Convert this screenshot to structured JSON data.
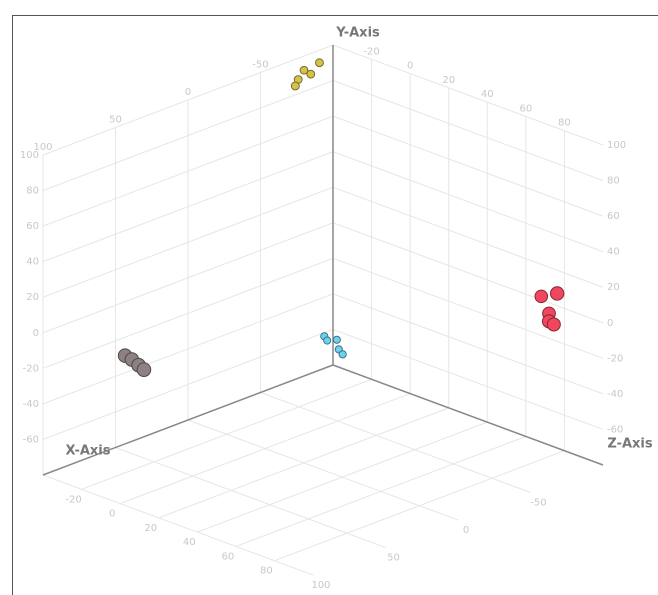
{
  "chart_data": {
    "type": "scatter3d",
    "xlabel": "X-Axis",
    "ylabel": "Y-Axis",
    "zlabel": "Z-Axis",
    "xlim": [
      -40,
      100
    ],
    "xticks": [
      -20,
      0,
      20,
      40,
      60,
      80
    ],
    "ylim": [
      -80,
      100
    ],
    "yticks": [
      -60,
      -40,
      -20,
      0,
      20,
      40,
      60,
      80,
      100
    ],
    "zlim": [
      -100,
      100
    ],
    "zticks": [
      -50,
      0,
      50,
      100
    ],
    "grid": true,
    "series": [
      {
        "color": "#f0475f",
        "x": [
          68,
          72,
          80,
          75,
          76
        ],
        "y": [
          2,
          -6,
          10,
          -8,
          -10
        ],
        "z": [
          -100,
          -100,
          -95,
          -96,
          -98
        ]
      },
      {
        "color": "#8d8182",
        "x": [
          -26,
          -24,
          -22,
          -20
        ],
        "y": [
          -19,
          -21,
          -24,
          -26
        ],
        "z": [
          62,
          60,
          58,
          57
        ]
      },
      {
        "color": "#d4c24a",
        "x": [
          -40,
          -40,
          -38,
          -40,
          -35
        ],
        "y": [
          92,
          88,
          90,
          85,
          97
        ],
        "z": [
          -80,
          -76,
          -82,
          -74,
          -84
        ]
      },
      {
        "color": "#6fd1f0",
        "x": [
          -38,
          -40,
          -40,
          -37,
          -35
        ],
        "y": [
          -65,
          -62,
          -65,
          -70,
          -72
        ],
        "z": [
          -100,
          -94,
          -96,
          -100,
          -100
        ]
      }
    ]
  }
}
